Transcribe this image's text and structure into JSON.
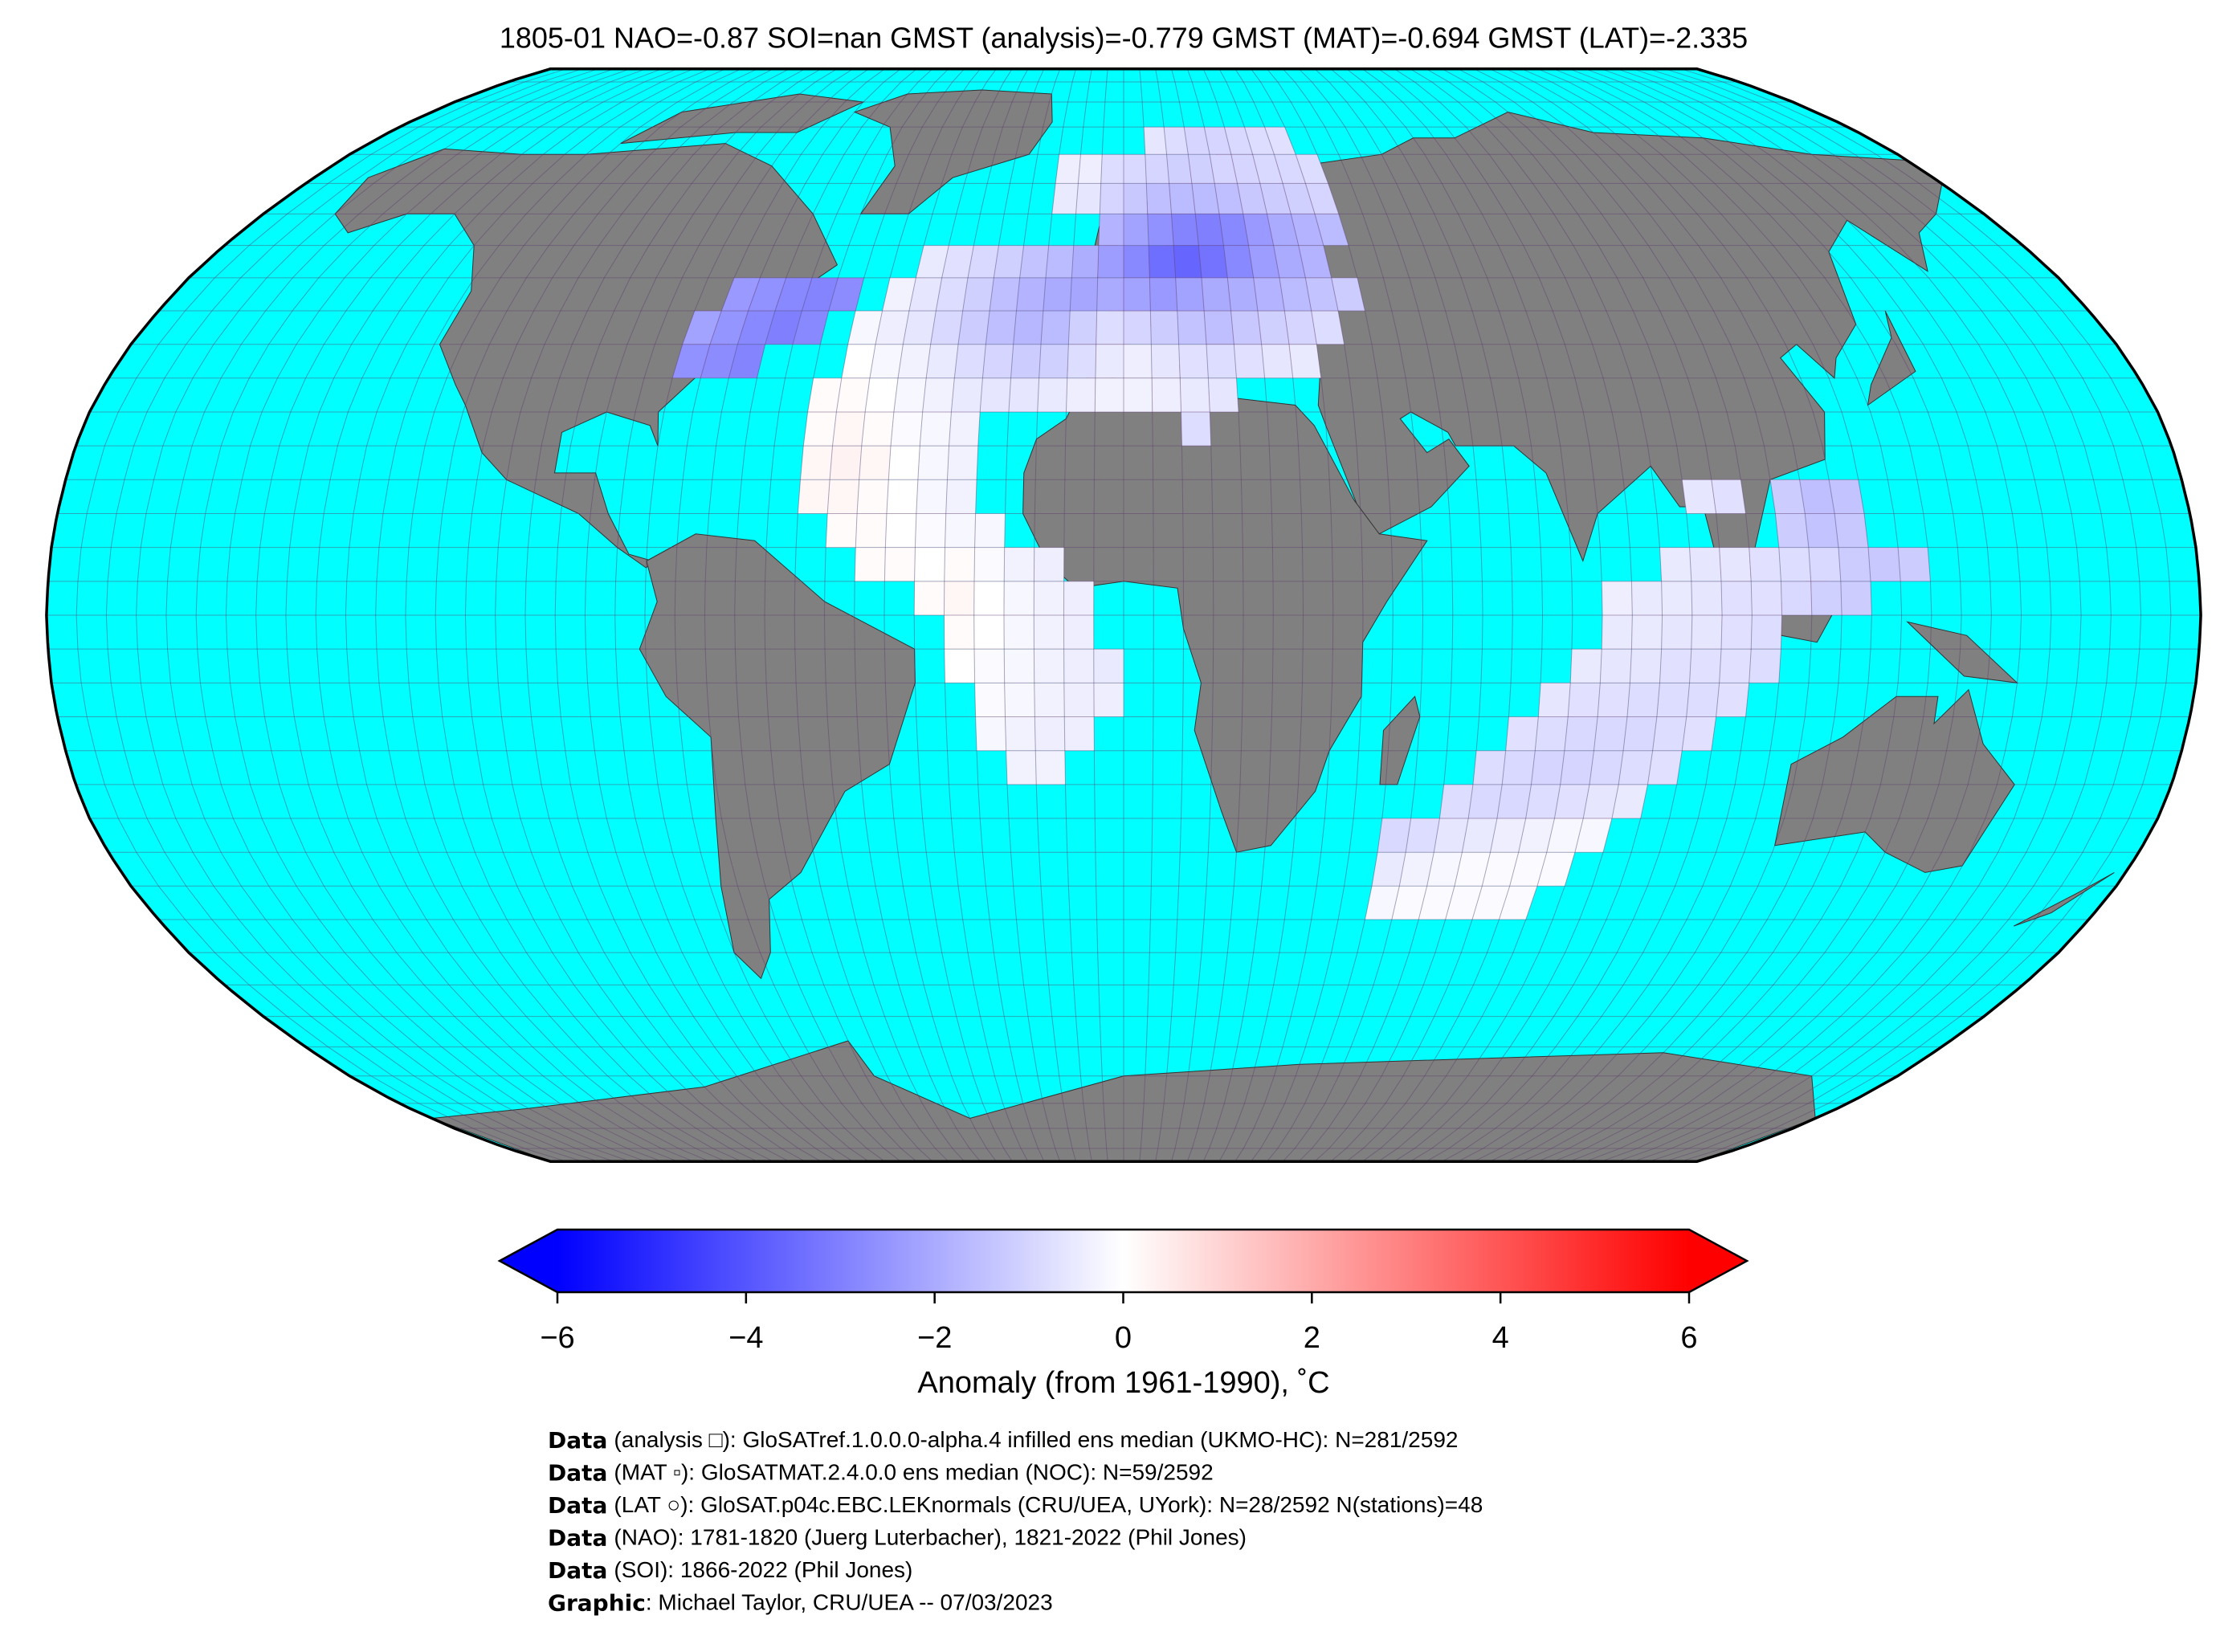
{
  "title": "1805-01 NAO=-0.87 SOI=nan GMST (analysis)=-0.779 GMST (MAT)=-0.694 GMST (LAT)=-2.335",
  "map": {
    "projection": "robinson",
    "central_longitude": 0,
    "cell_size": 5,
    "ocean_color": "#00ffff",
    "land_color": "#808080",
    "cells": [
      {
        "lat": 70,
        "lon": 5,
        "values": [
          -0.6,
          -0.8,
          -1.0,
          -1.0,
          -0.9,
          -0.8,
          -0.7
        ]
      },
      {
        "lat": 65,
        "lon": -15,
        "values": [
          -0.4,
          -0.4,
          -0.8,
          -0.9,
          -1.0,
          -1.1,
          -1.1,
          -1.0,
          -1.0,
          -0.9,
          -0.9,
          -0.8
        ]
      },
      {
        "lat": 60,
        "lon": -15,
        "values": [
          -0.5,
          -0.6,
          -1.0,
          -1.3,
          -1.5,
          -1.6,
          -1.6,
          -1.5,
          -1.3,
          -1.2,
          -1.1,
          -1.0
        ]
      },
      {
        "lat": 55,
        "lon": -5,
        "values": [
          -1.8,
          -2.2,
          -2.6,
          -2.9,
          -3.0,
          -2.8,
          -2.4,
          -2.0,
          -1.8,
          -1.6
        ]
      },
      {
        "lat": 50,
        "lon": -40,
        "values": [
          -0.5,
          -0.7,
          -0.9,
          -1.1,
          -1.4,
          -1.6,
          -1.9,
          -2.3,
          -2.8,
          -3.4,
          -3.6,
          -3.3,
          -2.8,
          -2.3,
          -2.0,
          -1.8
        ]
      },
      {
        "lat": 45,
        "lon": -45,
        "values": [
          -0.3,
          -0.6,
          -0.8,
          -1.1,
          -1.5,
          -1.8,
          -2.0,
          -2.1,
          -2.0,
          -2.2,
          -2.4,
          -2.2,
          -2.0,
          -1.9,
          -1.8,
          -1.6,
          -1.4,
          -1.2
        ]
      },
      {
        "lat": 40,
        "lon": -50,
        "values": [
          -0.2,
          -0.4,
          -0.6,
          -0.9,
          -1.2,
          -1.5,
          -1.7,
          -1.6,
          -1.1,
          -0.8,
          -1.0,
          -1.2,
          -1.4,
          -1.5,
          -1.3,
          -1.1,
          -1.0,
          -0.8
        ]
      },
      {
        "lat": 35,
        "lon": -50,
        "values": [
          0,
          -0.2,
          -0.3,
          -0.5,
          -0.8,
          -1.0,
          -1.2,
          -1.1,
          -0.8,
          -0.5,
          -0.4,
          -0.6,
          -0.7,
          -0.8,
          -0.7,
          -0.6,
          -0.5
        ]
      },
      {
        "lat": 30,
        "lon": -55,
        "values": [
          0.1,
          0.1,
          0,
          -0.2,
          -0.3,
          -0.5,
          -0.6,
          -0.6,
          -0.5,
          -0.4,
          -0.3,
          -0.3,
          -0.4,
          -0.5,
          -0.6
        ]
      },
      {
        "lat": 25,
        "lon": 10,
        "values": [
          -0.8
        ]
      },
      {
        "lat": 25,
        "lon": -55,
        "values": [
          0.1,
          0.2,
          0.1,
          -0.1,
          -0.2,
          -0.3
        ]
      },
      {
        "lat": 20,
        "lon": -55,
        "values": [
          0.2,
          0.3,
          0.2,
          0,
          -0.2,
          -0.3
        ]
      },
      {
        "lat": 15,
        "lon": -55,
        "values": [
          0.2,
          0.2,
          0.1,
          0,
          -0.2,
          -0.3
        ]
      },
      {
        "lat": 10,
        "lon": -50,
        "values": [
          0.1,
          0.1,
          0,
          -0.1,
          -0.2,
          -0.2
        ]
      },
      {
        "lat": 5,
        "lon": -45,
        "values": [
          0.1,
          0.1,
          0,
          0.1,
          -0.1,
          -0.3,
          -0.4
        ]
      },
      {
        "lat": 0,
        "lon": -35,
        "values": [
          0.1,
          0.2,
          0,
          -0.2,
          -0.3,
          -0.4
        ]
      },
      {
        "lat": -5,
        "lon": -30,
        "values": [
          0.1,
          0,
          -0.2,
          -0.3,
          -0.4
        ]
      },
      {
        "lat": -10,
        "lon": -30,
        "values": [
          0,
          -0.1,
          -0.2,
          -0.3,
          -0.4,
          -0.5
        ]
      },
      {
        "lat": -15,
        "lon": -25,
        "values": [
          -0.1,
          -0.2,
          -0.3,
          -0.4,
          -0.4
        ]
      },
      {
        "lat": -20,
        "lon": -25,
        "values": [
          -0.2,
          -0.3,
          -0.4,
          -0.4
        ]
      },
      {
        "lat": -25,
        "lon": -20,
        "values": [
          -0.3,
          -0.3
        ]
      },
      {
        "lat": 45,
        "lon": -75,
        "values": [
          -2.4,
          -2.6,
          -2.8,
          -2.9,
          -2.7
        ]
      },
      {
        "lat": 40,
        "lon": -80,
        "values": [
          -2.2,
          -2.5,
          -2.8,
          -3.0,
          -2.8
        ]
      },
      {
        "lat": 35,
        "lon": -80,
        "values": [
          -2.6,
          -2.7,
          -2.9
        ]
      },
      {
        "lat": 15,
        "lon": 95,
        "values": [
          -0.6,
          -0.7
        ]
      },
      {
        "lat": 15,
        "lon": 110,
        "values": [
          -1.2,
          -1.5,
          -1.4
        ]
      },
      {
        "lat": 10,
        "lon": 110,
        "values": [
          -1.2,
          -1.4,
          -1.3
        ]
      },
      {
        "lat": 5,
        "lon": 90,
        "values": [
          -0.5,
          -0.6,
          -0.6,
          -0.7,
          -0.8,
          -0.9,
          -1.2,
          -1.3,
          -1.2
        ]
      },
      {
        "lat": 0,
        "lon": 80,
        "values": [
          -0.4,
          -0.5,
          -0.5,
          -0.6,
          -0.7,
          -0.7,
          -0.9,
          -1.1,
          -1.2
        ]
      },
      {
        "lat": -5,
        "lon": 80,
        "values": [
          -0.5,
          -0.5,
          -0.6,
          -0.6,
          -0.7,
          -0.8
        ]
      },
      {
        "lat": -10,
        "lon": 75,
        "values": [
          -0.5,
          -0.6,
          -0.6,
          -0.7,
          -0.7,
          -0.7,
          -0.8
        ]
      },
      {
        "lat": -15,
        "lon": 70,
        "values": [
          -0.6,
          -0.7,
          -0.7,
          -0.8,
          -0.8,
          -0.8,
          -0.7
        ]
      },
      {
        "lat": -20,
        "lon": 65,
        "values": [
          -0.7,
          -0.8,
          -0.9,
          -0.9,
          -0.9,
          -0.8,
          -0.7
        ]
      },
      {
        "lat": -25,
        "lon": 60,
        "values": [
          -0.8,
          -0.9,
          -1.0,
          -1.0,
          -0.9,
          -0.8,
          -0.7
        ]
      },
      {
        "lat": -30,
        "lon": 55,
        "values": [
          -0.8,
          -0.9,
          -0.9,
          -0.8,
          -0.7,
          -0.6,
          -0.5
        ]
      },
      {
        "lat": -35,
        "lon": 45,
        "values": [
          -0.9,
          -0.8,
          -0.6,
          -0.5,
          -0.4,
          -0.3,
          -0.2,
          -0.2
        ]
      },
      {
        "lat": -40,
        "lon": 45,
        "values": [
          -0.5,
          -0.3,
          -0.2,
          -0.1,
          -0.1,
          -0.1,
          -0.1
        ]
      },
      {
        "lat": -45,
        "lon": 45,
        "values": [
          -0.2,
          -0.1,
          -0.1,
          -0.1,
          -0.1,
          -0.1
        ]
      }
    ]
  },
  "colorbar": {
    "cmap": "bwr",
    "lim": [
      -6,
      6
    ],
    "ticks": [
      {
        "value": -6,
        "label": "−6"
      },
      {
        "value": -4,
        "label": "−4"
      },
      {
        "value": -2,
        "label": "−2"
      },
      0,
      2,
      4,
      6
    ],
    "label": "Anomaly (from 1961-1990), ˚C"
  },
  "credits": [
    [
      "Data",
      "(analysis □): GloSATref.1.0.0.0-alpha.4 infilled ens median (UKMO-HC): N=281/2592"
    ],
    [
      "Data",
      "(MAT ▫): GloSATMAT.2.4.0.0 ens median (NOC): N=59/2592"
    ],
    [
      "Data",
      "(LAT ○): GloSAT.p04c.EBC.LEKnormals (CRU/UEA, UYork): N=28/2592 N(stations)=48"
    ],
    [
      "Data",
      "(NAO): 1781-1820 (Juerg Luterbacher), 1821-2022 (Phil Jones)"
    ],
    [
      "Data",
      "(SOI): 1866-2022 (Phil Jones)"
    ],
    [
      "Graphic",
      ": Michael Taylor, CRU/UEA -- 07/03/2023"
    ]
  ]
}
